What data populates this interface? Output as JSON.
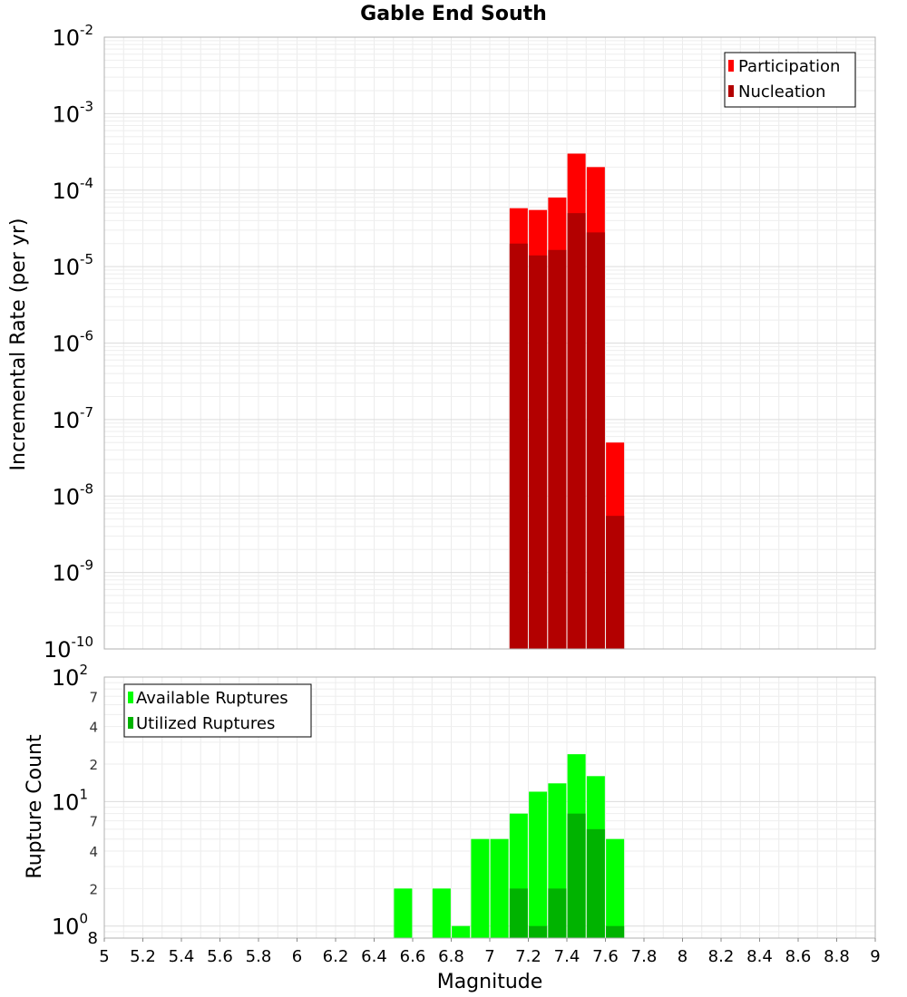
{
  "chart_data": [
    {
      "type": "bar",
      "title": "Gable End South",
      "xlabel": "",
      "ylabel": "Incremental Rate (per yr)",
      "y_scale": "log",
      "xlim": [
        5,
        9
      ],
      "ylim": [
        1e-10,
        0.01
      ],
      "y_ticks": [
        {
          "base": "10",
          "exp": "-10"
        },
        {
          "base": "10",
          "exp": "-9"
        },
        {
          "base": "10",
          "exp": "-8"
        },
        {
          "base": "10",
          "exp": "-7"
        },
        {
          "base": "10",
          "exp": "-6"
        },
        {
          "base": "10",
          "exp": "-5"
        },
        {
          "base": "10",
          "exp": "-4"
        },
        {
          "base": "10",
          "exp": "-3"
        },
        {
          "base": "10",
          "exp": "-2"
        }
      ],
      "grid": true,
      "legend_position": "top-right",
      "series": [
        {
          "name": "Participation",
          "color": "#ff0000",
          "x": [
            7.15,
            7.25,
            7.35,
            7.45,
            7.55,
            7.65
          ],
          "values": [
            5.8e-05,
            5.5e-05,
            8e-05,
            0.0003,
            0.0002,
            5e-08
          ]
        },
        {
          "name": "Nucleation",
          "color": "#b30000",
          "x": [
            7.15,
            7.25,
            7.35,
            7.45,
            7.55,
            7.65
          ],
          "values": [
            2e-05,
            1.4e-05,
            1.65e-05,
            5e-05,
            2.8e-05,
            5.5e-09
          ]
        }
      ]
    },
    {
      "type": "bar",
      "title": "",
      "xlabel": "Magnitude",
      "ylabel": "Rupture Count",
      "y_scale": "log",
      "xlim": [
        5,
        9
      ],
      "ylim": [
        0.8,
        100
      ],
      "x_ticks": [
        "5",
        "5.2",
        "5.4",
        "5.6",
        "5.8",
        "6",
        "6.2",
        "6.4",
        "6.6",
        "6.8",
        "7",
        "7.2",
        "7.4",
        "7.6",
        "7.8",
        "8",
        "8.2",
        "8.4",
        "8.6",
        "8.8",
        "9"
      ],
      "y_major_ticks": [
        {
          "base": "10",
          "exp": "0"
        },
        {
          "base": "10",
          "exp": "1"
        },
        {
          "base": "10",
          "exp": "2"
        }
      ],
      "y_minor_ticks": [
        {
          "label": "8",
          "value": 0.8
        },
        {
          "label": "2",
          "value": 2
        },
        {
          "label": "4",
          "value": 4
        },
        {
          "label": "7",
          "value": 7
        },
        {
          "label": "2",
          "value": 20
        },
        {
          "label": "4",
          "value": 40
        },
        {
          "label": "7",
          "value": 70
        }
      ],
      "grid": true,
      "legend_position": "top-left",
      "series": [
        {
          "name": "Available Ruptures",
          "color": "#00ff00",
          "x": [
            6.55,
            6.75,
            6.85,
            6.95,
            7.05,
            7.15,
            7.25,
            7.35,
            7.45,
            7.55,
            7.65
          ],
          "values": [
            2,
            2,
            1,
            5,
            5,
            8,
            12,
            14,
            24,
            16,
            5
          ]
        },
        {
          "name": "Utilized Ruptures",
          "color": "#00b300",
          "x": [
            7.15,
            7.25,
            7.35,
            7.45,
            7.55,
            7.65
          ],
          "values": [
            2,
            1,
            2,
            8,
            6,
            1
          ]
        }
      ]
    }
  ]
}
